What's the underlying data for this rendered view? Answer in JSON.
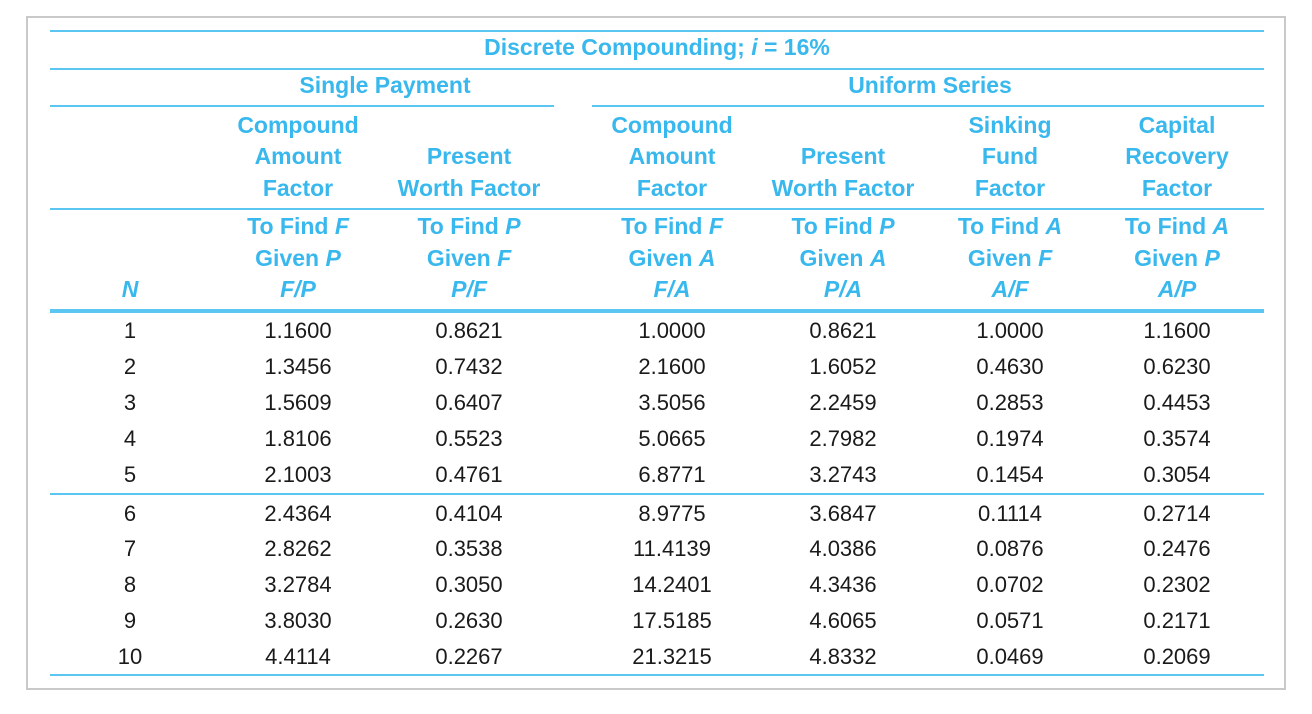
{
  "table": {
    "title": {
      "prefix": "Discrete Compounding; ",
      "var": "i",
      "suffix": " = 16%"
    },
    "groups": {
      "single": "Single Payment",
      "uniform": "Uniform Series"
    },
    "columns": [
      {
        "key": "fp",
        "name": [
          "Compound",
          "Amount",
          "Factor"
        ],
        "find": "To Find F",
        "given": "Given P",
        "notation": "F/P"
      },
      {
        "key": "pf",
        "name": [
          "Present",
          "Worth Factor"
        ],
        "find": "To Find P",
        "given": "Given F",
        "notation": "P/F"
      },
      {
        "key": "fa",
        "name": [
          "Compound",
          "Amount",
          "Factor"
        ],
        "find": "To Find F",
        "given": "Given A",
        "notation": "F/A"
      },
      {
        "key": "pa",
        "name": [
          "Present",
          "Worth Factor"
        ],
        "find": "To Find P",
        "given": "Given A",
        "notation": "P/A"
      },
      {
        "key": "af",
        "name": [
          "Sinking",
          "Fund",
          "Factor"
        ],
        "find": "To Find A",
        "given": "Given F",
        "notation": "A/F"
      },
      {
        "key": "ap",
        "name": [
          "Capital",
          "Recovery",
          "Factor"
        ],
        "find": "To Find A",
        "given": "Given P",
        "notation": "A/P"
      }
    ],
    "n_label": "N",
    "rows": [
      {
        "n": "1",
        "values": [
          "1.1600",
          "0.8621",
          "1.0000",
          "0.8621",
          "1.0000",
          "1.1600"
        ]
      },
      {
        "n": "2",
        "values": [
          "1.3456",
          "0.7432",
          "2.1600",
          "1.6052",
          "0.4630",
          "0.6230"
        ]
      },
      {
        "n": "3",
        "values": [
          "1.5609",
          "0.6407",
          "3.5056",
          "2.2459",
          "0.2853",
          "0.4453"
        ]
      },
      {
        "n": "4",
        "values": [
          "1.8106",
          "0.5523",
          "5.0665",
          "2.7982",
          "0.1974",
          "0.3574"
        ]
      },
      {
        "n": "5",
        "values": [
          "2.1003",
          "0.4761",
          "6.8771",
          "3.2743",
          "0.1454",
          "0.3054"
        ]
      },
      {
        "n": "6",
        "values": [
          "2.4364",
          "0.4104",
          "8.9775",
          "3.6847",
          "0.1114",
          "0.2714"
        ]
      },
      {
        "n": "7",
        "values": [
          "2.8262",
          "0.3538",
          "11.4139",
          "4.0386",
          "0.0876",
          "0.2476"
        ]
      },
      {
        "n": "8",
        "values": [
          "3.2784",
          "0.3050",
          "14.2401",
          "4.3436",
          "0.0702",
          "0.2302"
        ]
      },
      {
        "n": "9",
        "values": [
          "3.8030",
          "0.2630",
          "17.5185",
          "4.6065",
          "0.0571",
          "0.2171"
        ]
      },
      {
        "n": "10",
        "values": [
          "4.4114",
          "0.2267",
          "21.3215",
          "4.8332",
          "0.0469",
          "0.2069"
        ]
      }
    ],
    "colors": {
      "header": "#39b8ee",
      "rule": "#5cc6f3",
      "text": "#1a1a1a",
      "frame": "#c9c9c9"
    }
  }
}
